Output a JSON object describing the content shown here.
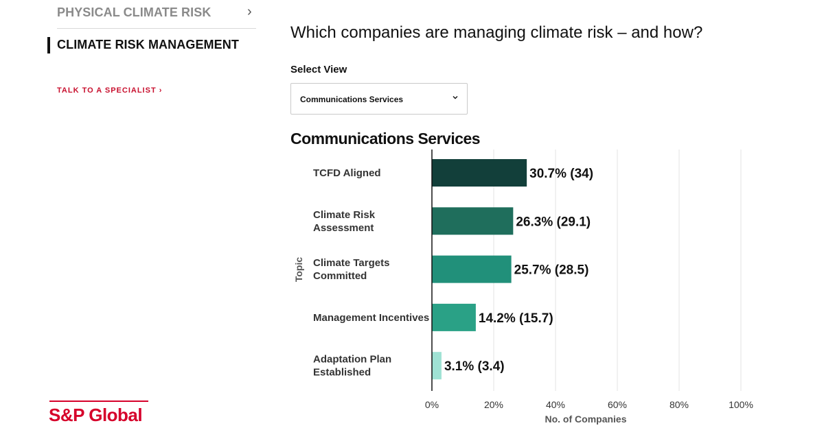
{
  "sidebar": {
    "items": [
      {
        "label": "PHYSICAL CLIMATE RISK",
        "icon": "chevron-right-icon"
      },
      {
        "label": "CLIMATE RISK MANAGEMENT",
        "active": true
      }
    ],
    "talk_link": "TALK TO A SPECIALIST ›"
  },
  "logo": {
    "text": "S&P Global",
    "color": "#d6002a"
  },
  "main": {
    "question": "Which companies are managing climate risk – and how?",
    "select_label": "Select View",
    "select_value": "Communications Services"
  },
  "chart_data": {
    "type": "bar",
    "orientation": "horizontal",
    "title": "Communications Services",
    "ylabel": "Topic",
    "xlabel": "No. of Companies",
    "categories": [
      [
        "TCFD Aligned"
      ],
      [
        "Climate Risk",
        "Assessment"
      ],
      [
        "Climate Targets",
        "Committed"
      ],
      [
        "Management Incentives"
      ],
      [
        "Adaptation Plan",
        "Established"
      ]
    ],
    "values": [
      30.7,
      26.3,
      25.7,
      14.2,
      3.1
    ],
    "counts": [
      34,
      29.1,
      28.5,
      15.7,
      3.4
    ],
    "data_labels": [
      "30.7% (34)",
      "26.3% (29.1)",
      "25.7% (28.5)",
      "14.2% (15.7)",
      "3.1% (3.4)"
    ],
    "colors": [
      "#123f3a",
      "#1f6e5c",
      "#21907a",
      "#2aa186",
      "#9fe2d4"
    ],
    "xlim": [
      0,
      100
    ],
    "xticks": [
      0,
      20,
      40,
      60,
      80,
      100
    ],
    "xtick_labels": [
      "0%",
      "20%",
      "40%",
      "60%",
      "80%",
      "100%"
    ],
    "grid": true,
    "legend": "none"
  }
}
